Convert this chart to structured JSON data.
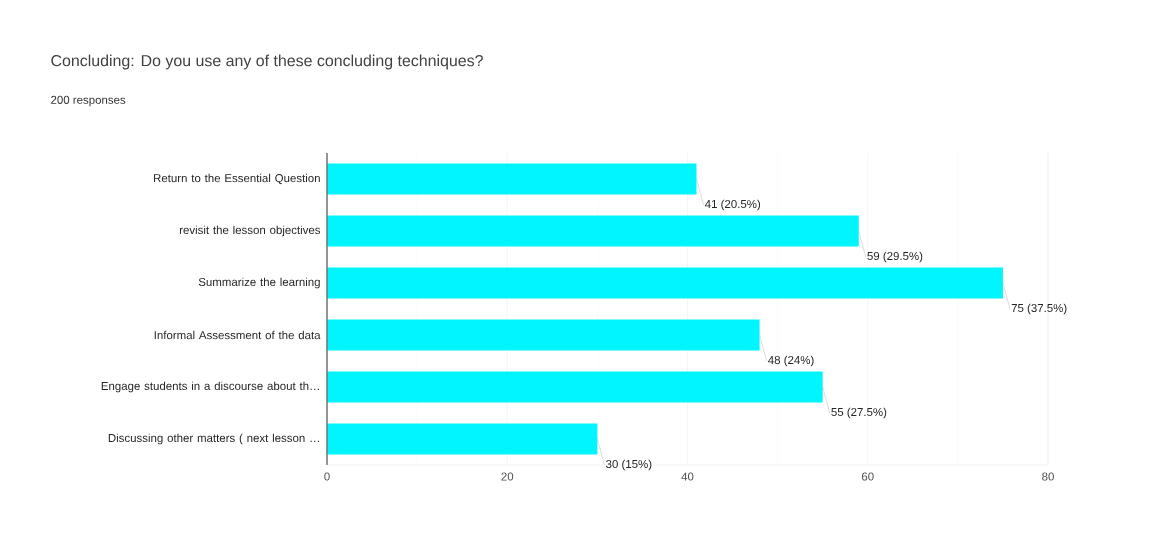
{
  "chart_data": {
    "type": "bar",
    "orientation": "horizontal",
    "title": "Concluding: Do you use any of these concluding techniques?",
    "subtitle": "200 responses",
    "categories": [
      "Return to the Essential Question",
      "revisit the lesson objectives",
      "Summarize the learning",
      "Informal Assessment of the data",
      "Engage students in a discourse about th…",
      "Discussing other matters ( next lesson …"
    ],
    "values": [
      41,
      59,
      75,
      48,
      55,
      30
    ],
    "value_labels": [
      "41 (20.5%)",
      "59 (29.5%)",
      "75 (37.5%)",
      "48 (24%)",
      "55 (27.5%)",
      "30 (15%)"
    ],
    "color": "#00f5ff",
    "xlim": [
      0,
      80
    ],
    "xticks": [
      0,
      20,
      40,
      60,
      80
    ],
    "grid": "x"
  }
}
